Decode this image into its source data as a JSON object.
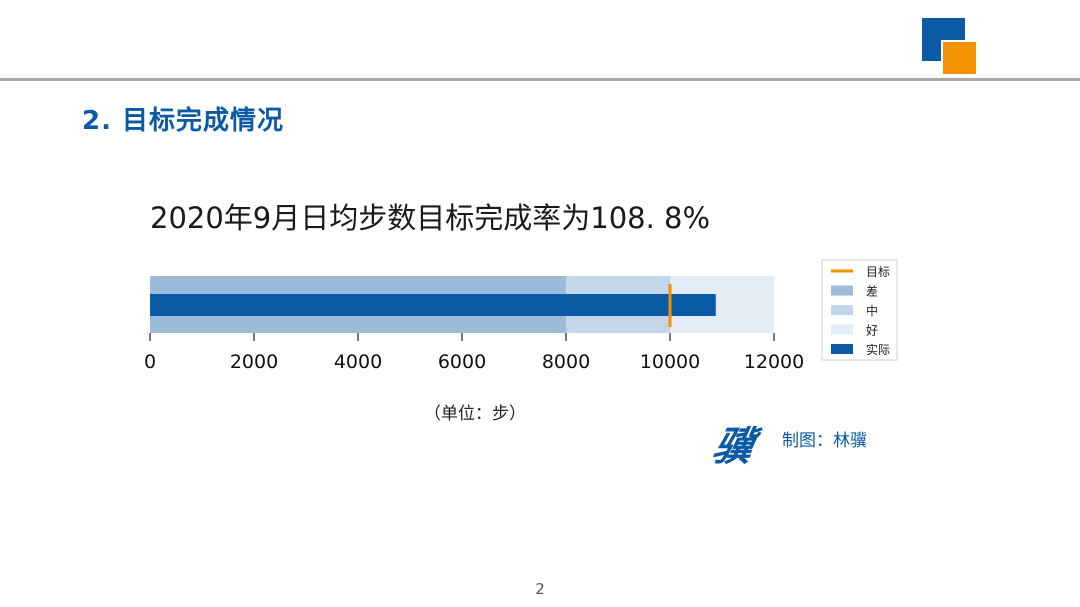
{
  "colors": {
    "brand_blue": "#0b5aa6",
    "brand_orange": "#f39200",
    "target": "#f39200",
    "poor": "#9bbbd9",
    "medium": "#c4d7ea",
    "good": "#e4ecf5",
    "actual": "#0b5aa6"
  },
  "header": {
    "logo_icon": "brand-logo-icon",
    "section_title": "2. 目标完成情况"
  },
  "chart_data": {
    "type": "bullet",
    "title": "2020年9月日均步数目标完成率为108. 8%",
    "xlabel": "（单位：步）",
    "xlim": [
      0,
      12000
    ],
    "xticks": [
      0,
      2000,
      4000,
      6000,
      8000,
      10000,
      12000
    ],
    "xtick_labels": [
      "0",
      "2000",
      "4000",
      "6000",
      "8000",
      "10000",
      "12000"
    ],
    "ranges": [
      {
        "name": "差",
        "from": 0,
        "to": 8000
      },
      {
        "name": "中",
        "from": 8000,
        "to": 10000
      },
      {
        "name": "好",
        "from": 10000,
        "to": 12000
      }
    ],
    "actual": {
      "name": "实际",
      "value": 10880
    },
    "target": {
      "name": "目标",
      "value": 10000
    },
    "legend": [
      "目标",
      "差",
      "中",
      "好",
      "实际"
    ],
    "legend_position": "right"
  },
  "credit": {
    "stamp": "骥",
    "text": "制图：林骥"
  },
  "footer": {
    "page_number": "2"
  }
}
